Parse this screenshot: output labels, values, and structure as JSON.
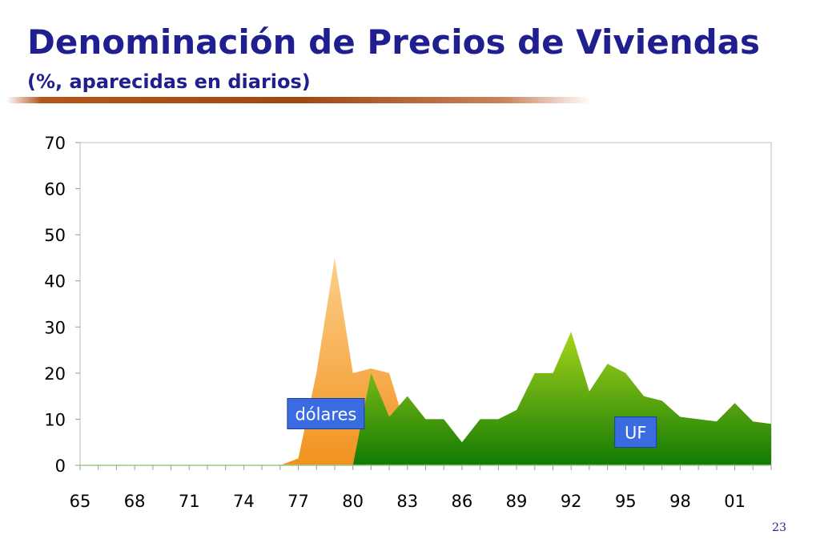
{
  "slide": {
    "title": "Denominación de Precios de Viviendas",
    "subtitle": "(%, aparecidas en diarios)",
    "page_number": "23",
    "accent_color": "#1f1f8f",
    "rule_color": "#a04812"
  },
  "chart_data": {
    "type": "area",
    "title": "",
    "xlabel": "",
    "ylabel": "",
    "x": [
      1965,
      1966,
      1967,
      1968,
      1969,
      1970,
      1971,
      1972,
      1973,
      1974,
      1975,
      1976,
      1977,
      1978,
      1979,
      1980,
      1981,
      1982,
      1983,
      1984,
      1985,
      1986,
      1987,
      1988,
      1989,
      1990,
      1991,
      1992,
      1993,
      1994,
      1995,
      1996,
      1997,
      1998,
      1999,
      2000,
      2001,
      2002,
      2003
    ],
    "x_tick_labels": [
      "65",
      "68",
      "71",
      "74",
      "77",
      "80",
      "83",
      "86",
      "89",
      "92",
      "95",
      "98",
      "01"
    ],
    "x_tick_values": [
      1965,
      1968,
      1971,
      1974,
      1977,
      1980,
      1983,
      1986,
      1989,
      1992,
      1995,
      1998,
      2001
    ],
    "ylim": [
      0,
      70
    ],
    "y_ticks": [
      0,
      10,
      20,
      30,
      40,
      50,
      60,
      70
    ],
    "grid": false,
    "series": [
      {
        "name": "dólares",
        "color": "#f5a03c",
        "values": [
          0,
          0,
          0,
          0,
          0,
          0,
          0,
          0,
          0,
          0,
          0,
          0,
          1.5,
          20,
          45,
          20,
          21,
          20,
          7,
          0,
          0,
          0,
          0,
          0,
          0,
          0,
          0,
          0,
          0,
          0,
          0,
          0,
          0,
          0,
          0,
          0,
          0,
          0,
          0
        ]
      },
      {
        "name": "UF",
        "color": "#3f9a10",
        "values": [
          0,
          0,
          0,
          0,
          0,
          0,
          0,
          0,
          0,
          0,
          0,
          0,
          0,
          0,
          0,
          0,
          20,
          10.5,
          15,
          10,
          10,
          5,
          10,
          10,
          12,
          20,
          20,
          29,
          16,
          22,
          20,
          15,
          14,
          10.5,
          10,
          9.5,
          13.5,
          9.5,
          9
        ]
      }
    ]
  }
}
